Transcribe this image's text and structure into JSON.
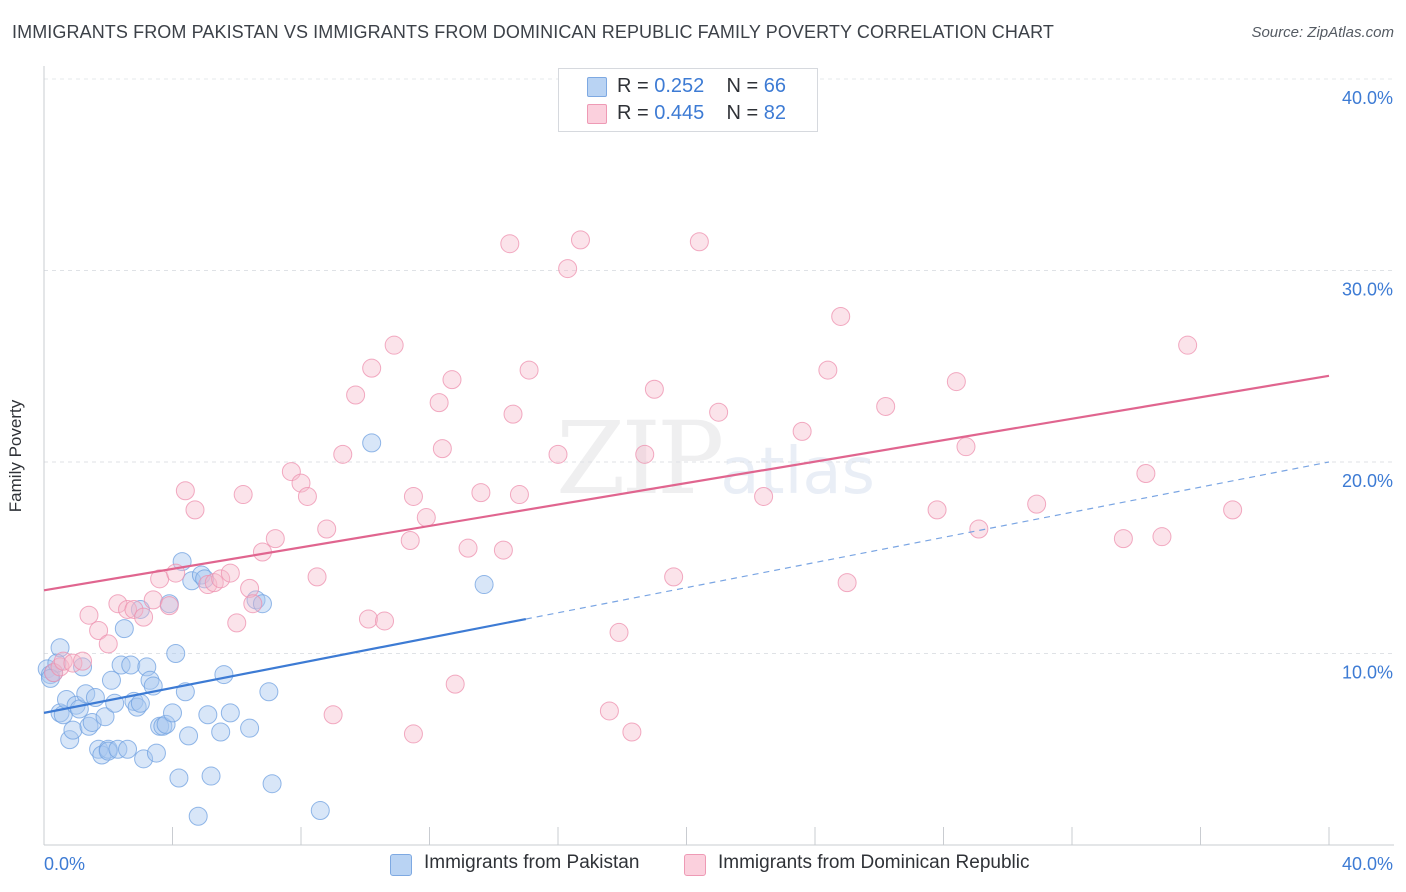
{
  "title": "IMMIGRANTS FROM PAKISTAN VS IMMIGRANTS FROM DOMINICAN REPUBLIC FAMILY POVERTY CORRELATION CHART",
  "source": "Source: ZipAtlas.com",
  "watermark": {
    "zip": "ZIP",
    "atlas": "atlas"
  },
  "legend": {
    "r_label": "R =",
    "n_label": "N =",
    "rows": [
      {
        "r": "0.252",
        "n": "66",
        "color": "#a8c8f0"
      },
      {
        "r": "0.445",
        "n": "82",
        "color": "#f6b8cb"
      }
    ]
  },
  "bottom_legend": [
    {
      "label": "Immigrants from Pakistan",
      "color": "#a8c8f0"
    },
    {
      "label": "Immigrants from Dominican Republic",
      "color": "#f6b8cb"
    }
  ],
  "chart_data": {
    "type": "scatter",
    "title": "IMMIGRANTS FROM PAKISTAN VS IMMIGRANTS FROM DOMINICAN REPUBLIC FAMILY POVERTY CORRELATION CHART",
    "xlabel": "",
    "ylabel": "Family Poverty",
    "xlim": [
      0,
      40
    ],
    "ylim": [
      0,
      40
    ],
    "x_tick_labels": [
      "0.0%",
      "40.0%"
    ],
    "y_ticks": [
      10,
      20,
      30,
      40
    ],
    "y_tick_labels": [
      "10.0%",
      "20.0%",
      "30.0%",
      "40.0%"
    ],
    "grid": true,
    "legend_position": "top-center",
    "series": [
      {
        "name": "Immigrants from Pakistan",
        "color": "#6fa0e0",
        "r": 0.252,
        "n": 66,
        "trend": {
          "x": [
            0,
            15
          ],
          "y": [
            6.9,
            11.8
          ],
          "dashed_extension_to": [
            40,
            20.0
          ]
        },
        "points": [
          [
            0.1,
            9.2
          ],
          [
            0.2,
            8.9
          ],
          [
            0.3,
            9.0
          ],
          [
            0.5,
            10.3
          ],
          [
            0.4,
            9.5
          ],
          [
            0.5,
            6.9
          ],
          [
            0.6,
            6.8
          ],
          [
            0.7,
            7.6
          ],
          [
            0.8,
            5.5
          ],
          [
            0.9,
            6.0
          ],
          [
            1.0,
            7.3
          ],
          [
            1.1,
            7.1
          ],
          [
            1.2,
            9.3
          ],
          [
            1.3,
            7.9
          ],
          [
            1.4,
            6.2
          ],
          [
            1.5,
            6.4
          ],
          [
            1.6,
            7.7
          ],
          [
            1.7,
            5.0
          ],
          [
            1.8,
            4.7
          ],
          [
            1.9,
            6.7
          ],
          [
            2.0,
            5.0
          ],
          [
            2.0,
            4.9
          ],
          [
            2.1,
            8.6
          ],
          [
            2.2,
            7.4
          ],
          [
            2.3,
            5.0
          ],
          [
            2.4,
            9.4
          ],
          [
            2.5,
            11.3
          ],
          [
            2.6,
            5.0
          ],
          [
            2.7,
            9.4
          ],
          [
            2.8,
            7.5
          ],
          [
            2.9,
            7.2
          ],
          [
            3.0,
            12.3
          ],
          [
            3.0,
            7.4
          ],
          [
            3.1,
            4.5
          ],
          [
            3.2,
            9.3
          ],
          [
            3.3,
            8.6
          ],
          [
            3.4,
            8.3
          ],
          [
            3.5,
            4.8
          ],
          [
            3.6,
            6.2
          ],
          [
            3.7,
            6.2
          ],
          [
            3.8,
            6.3
          ],
          [
            3.9,
            12.6
          ],
          [
            4.0,
            6.9
          ],
          [
            4.1,
            10.0
          ],
          [
            4.2,
            3.5
          ],
          [
            4.3,
            14.8
          ],
          [
            4.4,
            8.0
          ],
          [
            4.5,
            5.7
          ],
          [
            4.6,
            13.8
          ],
          [
            4.8,
            1.5
          ],
          [
            4.9,
            14.1
          ],
          [
            5.0,
            13.9
          ],
          [
            5.1,
            6.8
          ],
          [
            5.2,
            3.6
          ],
          [
            5.5,
            5.9
          ],
          [
            5.6,
            8.9
          ],
          [
            5.8,
            6.9
          ],
          [
            6.4,
            6.1
          ],
          [
            6.6,
            12.8
          ],
          [
            6.8,
            12.6
          ],
          [
            7.0,
            8.0
          ],
          [
            7.1,
            3.2
          ],
          [
            8.6,
            1.8
          ],
          [
            10.2,
            21.0
          ],
          [
            13.7,
            13.6
          ],
          [
            0.2,
            8.7
          ]
        ]
      },
      {
        "name": "Immigrants from Dominican Republic",
        "color": "#ee8fae",
        "r": 0.445,
        "n": 82,
        "trend": {
          "x": [
            0,
            40
          ],
          "y": [
            13.3,
            24.5
          ]
        },
        "points": [
          [
            0.3,
            9.0
          ],
          [
            0.5,
            9.3
          ],
          [
            0.6,
            9.6
          ],
          [
            0.9,
            9.5
          ],
          [
            1.2,
            9.6
          ],
          [
            1.4,
            12.0
          ],
          [
            1.7,
            11.2
          ],
          [
            2.0,
            10.5
          ],
          [
            2.3,
            12.6
          ],
          [
            2.6,
            12.3
          ],
          [
            2.8,
            12.3
          ],
          [
            3.1,
            11.9
          ],
          [
            3.4,
            12.8
          ],
          [
            3.6,
            13.9
          ],
          [
            3.9,
            12.5
          ],
          [
            4.1,
            14.2
          ],
          [
            4.4,
            18.5
          ],
          [
            4.7,
            17.5
          ],
          [
            5.1,
            13.6
          ],
          [
            5.3,
            13.7
          ],
          [
            5.5,
            13.9
          ],
          [
            5.8,
            14.2
          ],
          [
            6.0,
            11.6
          ],
          [
            6.2,
            18.3
          ],
          [
            6.4,
            13.4
          ],
          [
            6.5,
            12.6
          ],
          [
            6.8,
            15.3
          ],
          [
            7.2,
            16.0
          ],
          [
            7.7,
            19.5
          ],
          [
            8.0,
            18.9
          ],
          [
            8.2,
            18.2
          ],
          [
            8.5,
            14.0
          ],
          [
            8.8,
            16.5
          ],
          [
            9.3,
            20.4
          ],
          [
            9.7,
            23.5
          ],
          [
            10.1,
            11.8
          ],
          [
            10.2,
            24.9
          ],
          [
            10.6,
            11.7
          ],
          [
            10.9,
            26.1
          ],
          [
            11.4,
            15.9
          ],
          [
            11.5,
            18.2
          ],
          [
            11.9,
            17.1
          ],
          [
            12.3,
            23.1
          ],
          [
            12.4,
            20.7
          ],
          [
            12.7,
            24.3
          ],
          [
            12.8,
            8.4
          ],
          [
            13.2,
            15.5
          ],
          [
            13.6,
            18.4
          ],
          [
            14.3,
            15.4
          ],
          [
            14.5,
            31.4
          ],
          [
            14.6,
            22.5
          ],
          [
            14.8,
            18.3
          ],
          [
            15.1,
            24.8
          ],
          [
            16.0,
            20.4
          ],
          [
            16.3,
            30.1
          ],
          [
            16.7,
            31.6
          ],
          [
            17.6,
            7.0
          ],
          [
            17.9,
            11.1
          ],
          [
            18.3,
            5.9
          ],
          [
            18.7,
            20.4
          ],
          [
            19.0,
            23.8
          ],
          [
            19.6,
            14.0
          ],
          [
            20.4,
            31.5
          ],
          [
            21.0,
            22.6
          ],
          [
            22.4,
            18.2
          ],
          [
            23.6,
            21.6
          ],
          [
            24.4,
            24.8
          ],
          [
            24.8,
            27.6
          ],
          [
            25.0,
            13.7
          ],
          [
            26.2,
            22.9
          ],
          [
            27.8,
            17.5
          ],
          [
            28.4,
            24.2
          ],
          [
            28.7,
            20.8
          ],
          [
            29.1,
            16.5
          ],
          [
            30.9,
            17.8
          ],
          [
            33.6,
            16.0
          ],
          [
            34.3,
            19.4
          ],
          [
            34.8,
            16.1
          ],
          [
            35.6,
            26.1
          ],
          [
            37.0,
            17.5
          ],
          [
            9.0,
            6.8
          ],
          [
            11.5,
            5.8
          ]
        ]
      }
    ]
  }
}
